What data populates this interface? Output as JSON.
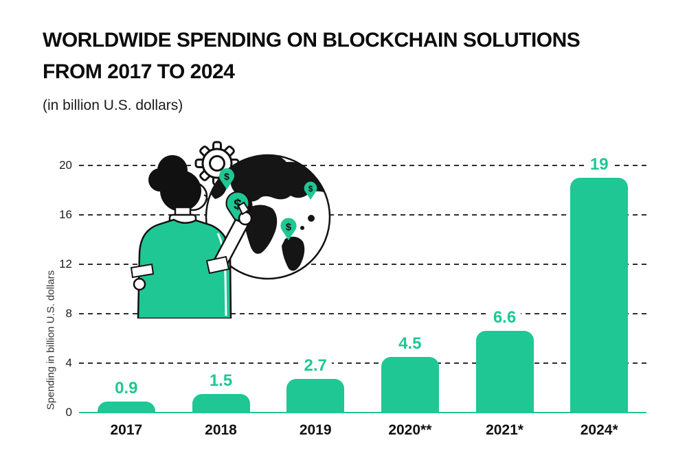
{
  "header": {
    "title_line1": "WORLDWIDE SPENDING ON BLOCKCHAIN SOLUTIONS",
    "title_line2": "FROM 2017 TO 2024",
    "subtitle": "(in billion U.S. dollars)"
  },
  "chart_data": {
    "type": "bar",
    "title": "WORLDWIDE SPENDING ON BLOCKCHAIN SOLUTIONS FROM 2017 TO 2024",
    "subtitle": "(in billion U.S. dollars)",
    "categories": [
      "2017",
      "2018",
      "2019",
      "2020**",
      "2021*",
      "2024*"
    ],
    "values": [
      0.9,
      1.5,
      2.7,
      4.5,
      6.6,
      19
    ],
    "value_labels": [
      "0.9",
      "1.5",
      "2.7",
      "4.5",
      "6.6",
      "19"
    ],
    "xlabel": "",
    "ylabel": "Spending in billion U.S. dollars",
    "ylim": [
      0,
      20
    ],
    "yticks": [
      0,
      4,
      8,
      12,
      16,
      20
    ],
    "grid": "horizontal dashed gridlines, solid colored baseline at 0",
    "legend": "none",
    "bar_color": "#1fc794",
    "value_label_color": "#1fc794",
    "gridline_color": "#2d2d2d",
    "baseline_color": "#1fc794"
  },
  "illustration": {
    "description": "Woman with hair bun in a green shirt placing money location pins on a globe, gear behind globe",
    "icons": [
      "gear-icon",
      "globe-icon",
      "money-pin-icon",
      "person-figure"
    ],
    "pin_symbol": "$",
    "accent_color": "#1fc794",
    "line_color": "#111111"
  }
}
